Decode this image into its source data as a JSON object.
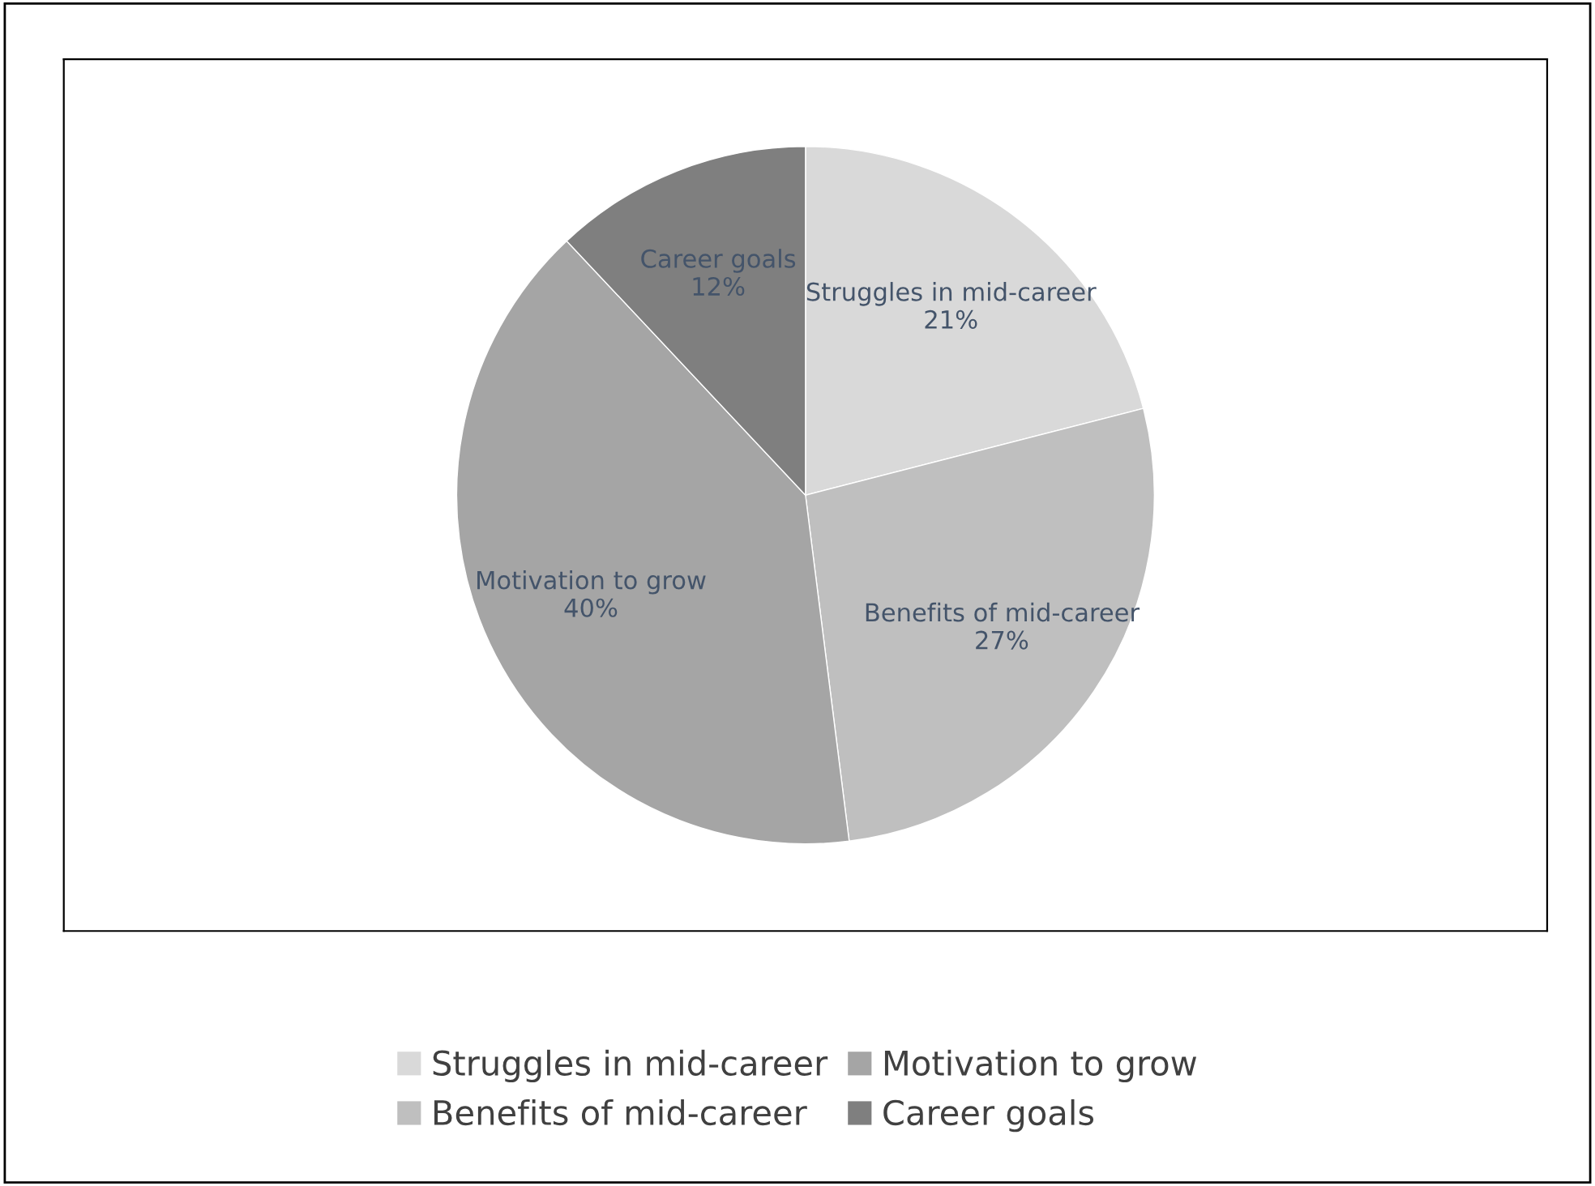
{
  "chart_data": {
    "type": "pie",
    "categories": [
      "Struggles in mid-career",
      "Benefits of mid-career",
      "Motivation to grow",
      "Career goals"
    ],
    "values": [
      21,
      27,
      40,
      12
    ],
    "colors": [
      "#d9d9d9",
      "#bfbfbf",
      "#a5a5a5",
      "#7f7f7f"
    ],
    "value_labels": [
      "21%",
      "27%",
      "40%",
      "12%"
    ],
    "legend": "bottom"
  }
}
